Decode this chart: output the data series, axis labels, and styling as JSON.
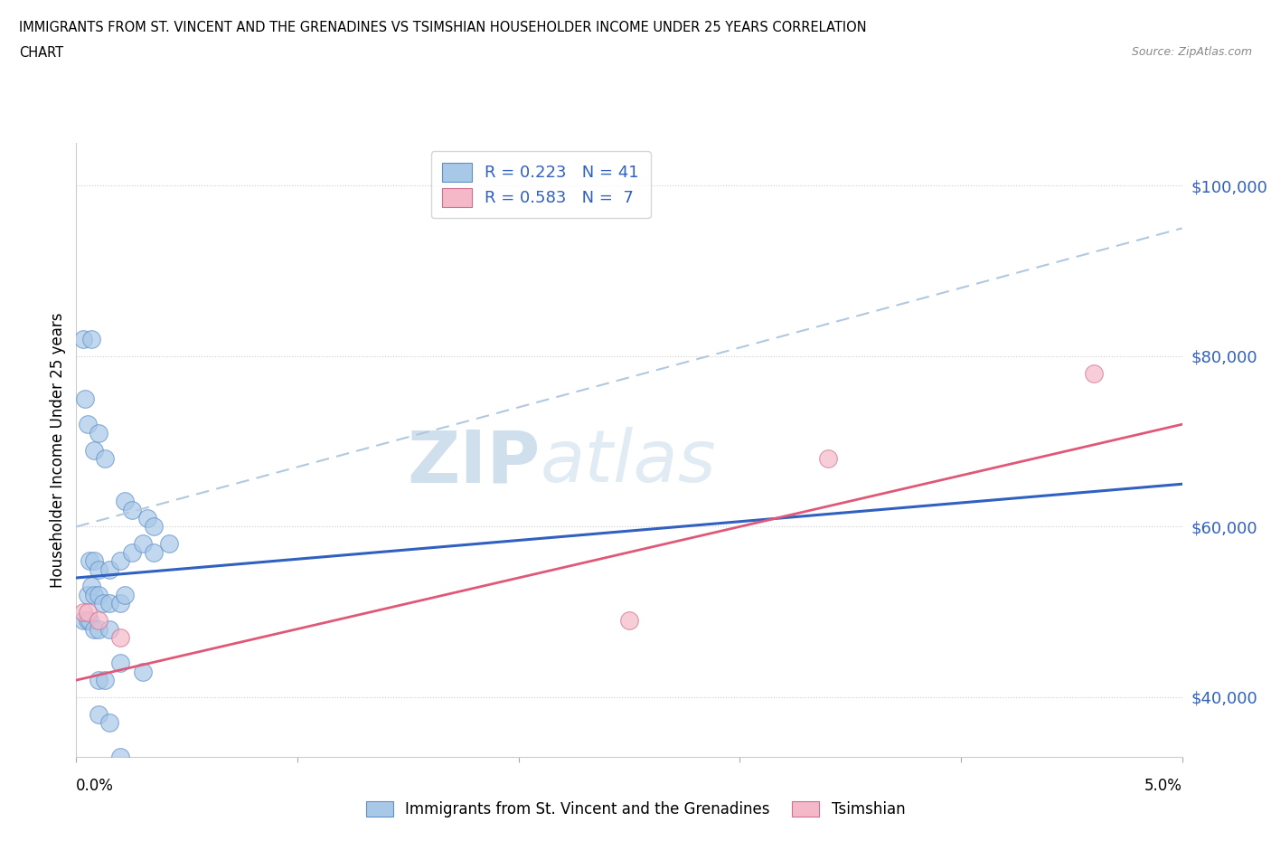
{
  "title_line1": "IMMIGRANTS FROM ST. VINCENT AND THE GRENADINES VS TSIMSHIAN HOUSEHOLDER INCOME UNDER 25 YEARS CORRELATION",
  "title_line2": "CHART",
  "source_text": "Source: ZipAtlas.com",
  "ylabel": "Householder Income Under 25 years",
  "ytick_labels": [
    "$40,000",
    "$60,000",
    "$80,000",
    "$100,000"
  ],
  "ytick_values": [
    40000,
    60000,
    80000,
    100000
  ],
  "xlim": [
    0.0,
    0.05
  ],
  "ylim": [
    33000,
    105000
  ],
  "legend_r1": "R = 0.223   N = 41",
  "legend_r2": "R = 0.583   N =  7",
  "watermark_text": "ZIP",
  "watermark_text2": "atlas",
  "blue_color": "#a8c8e8",
  "pink_color": "#f5b8c8",
  "blue_line_color": "#3060c0",
  "pink_line_color": "#e05878",
  "dashed_line_color": "#b0c8e0",
  "blue_scatter": [
    [
      0.0003,
      82000
    ],
    [
      0.0007,
      82000
    ],
    [
      0.0004,
      75000
    ],
    [
      0.0005,
      72000
    ],
    [
      0.001,
      71000
    ],
    [
      0.0008,
      69000
    ],
    [
      0.0013,
      68000
    ],
    [
      0.0022,
      63000
    ],
    [
      0.0025,
      62000
    ],
    [
      0.0032,
      61000
    ],
    [
      0.0035,
      60000
    ],
    [
      0.0042,
      58000
    ],
    [
      0.0006,
      56000
    ],
    [
      0.0008,
      56000
    ],
    [
      0.001,
      55000
    ],
    [
      0.0015,
      55000
    ],
    [
      0.002,
      56000
    ],
    [
      0.0025,
      57000
    ],
    [
      0.003,
      58000
    ],
    [
      0.0035,
      57000
    ],
    [
      0.0005,
      52000
    ],
    [
      0.0007,
      53000
    ],
    [
      0.0008,
      52000
    ],
    [
      0.001,
      52000
    ],
    [
      0.0012,
      51000
    ],
    [
      0.0015,
      51000
    ],
    [
      0.002,
      51000
    ],
    [
      0.0022,
      52000
    ],
    [
      0.0003,
      49000
    ],
    [
      0.0005,
      49000
    ],
    [
      0.0006,
      49000
    ],
    [
      0.0008,
      48000
    ],
    [
      0.001,
      48000
    ],
    [
      0.0015,
      48000
    ],
    [
      0.002,
      44000
    ],
    [
      0.003,
      43000
    ],
    [
      0.001,
      42000
    ],
    [
      0.0013,
      42000
    ],
    [
      0.001,
      38000
    ],
    [
      0.0015,
      37000
    ],
    [
      0.002,
      33000
    ]
  ],
  "pink_scatter": [
    [
      0.0003,
      50000
    ],
    [
      0.0005,
      50000
    ],
    [
      0.001,
      49000
    ],
    [
      0.002,
      47000
    ],
    [
      0.025,
      49000
    ],
    [
      0.034,
      68000
    ],
    [
      0.046,
      78000
    ]
  ],
  "blue_trend_x": [
    0.0,
    0.05
  ],
  "blue_trend_y": [
    54000,
    65000
  ],
  "pink_trend_x": [
    0.0,
    0.05
  ],
  "pink_trend_y": [
    42000,
    72000
  ],
  "dashed_trend_x": [
    0.0,
    0.05
  ],
  "dashed_trend_y": [
    60000,
    95000
  ]
}
